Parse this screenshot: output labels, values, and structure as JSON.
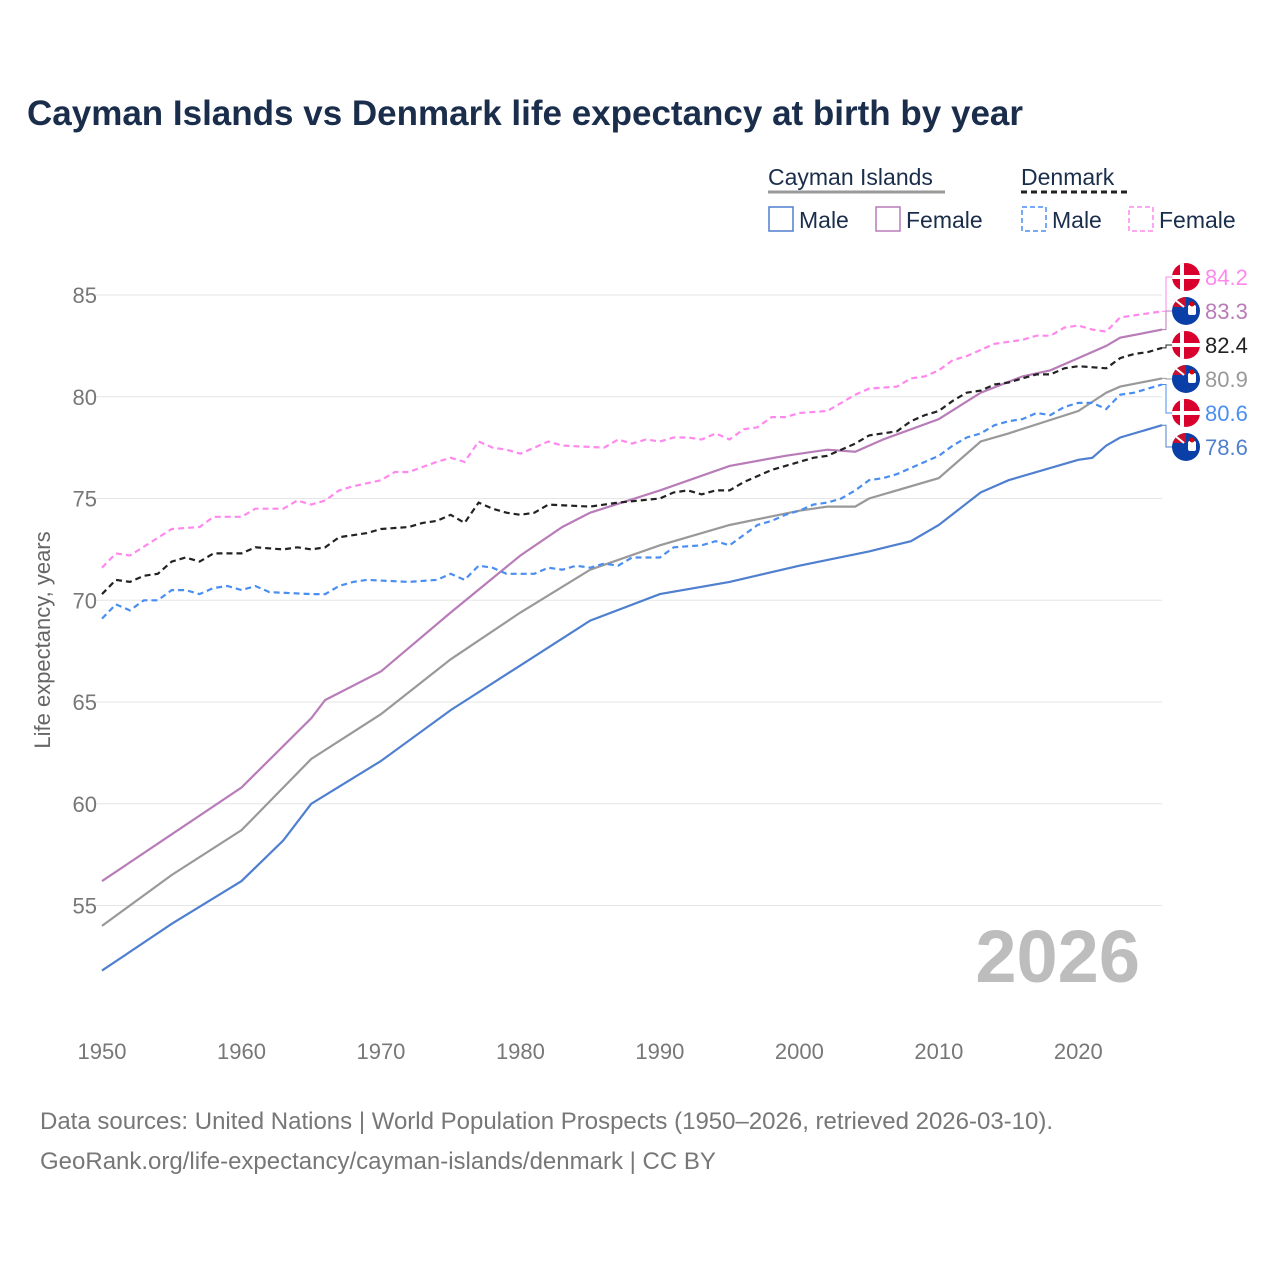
{
  "title": "Cayman Islands vs Denmark life expectancy at birth by year",
  "footer": {
    "line1": "Data sources: United Nations | World Population Prospects (1950–2026, retrieved 2026-03-10).",
    "line2": "GeoRank.org/life-expectancy/cayman-islands/denmark | CC BY"
  },
  "chart_data": {
    "type": "line",
    "title": "Cayman Islands vs Denmark life expectancy at birth by year",
    "xlabel": "",
    "ylabel": "Life expectancy, years",
    "xlim": [
      1950,
      2026
    ],
    "ylim": [
      50,
      86.5
    ],
    "xticks": [
      1950,
      1960,
      1970,
      1980,
      1990,
      2000,
      2010,
      2020
    ],
    "yticks": [
      55,
      60,
      65,
      70,
      75,
      80,
      85
    ],
    "grid": true,
    "watermark": "2026",
    "legend": {
      "position": "top-right",
      "groups": [
        {
          "name": "Cayman Islands",
          "items": [
            "Male",
            "Female"
          ]
        },
        {
          "name": "Denmark",
          "items": [
            "Male",
            "Female"
          ]
        }
      ]
    },
    "series": [
      {
        "name": "Cayman Islands",
        "color": "#999999",
        "dash": false,
        "flag": "cayman",
        "end_label": "80.9",
        "points": [
          [
            1950,
            54.0
          ],
          [
            1955,
            56.5
          ],
          [
            1960,
            58.7
          ],
          [
            1965,
            62.2
          ],
          [
            1970,
            64.4
          ],
          [
            1975,
            67.1
          ],
          [
            1980,
            69.4
          ],
          [
            1985,
            71.5
          ],
          [
            1990,
            72.7
          ],
          [
            1995,
            73.7
          ],
          [
            2000,
            74.4
          ],
          [
            2002,
            74.6
          ],
          [
            2004,
            74.6
          ],
          [
            2005,
            75.0
          ],
          [
            2010,
            76.0
          ],
          [
            2013,
            77.8
          ],
          [
            2015,
            78.2
          ],
          [
            2020,
            79.3
          ],
          [
            2022,
            80.2
          ],
          [
            2023,
            80.5
          ],
          [
            2026,
            80.9
          ]
        ]
      },
      {
        "name": "Cayman Islands Female",
        "color": "#b87cb8",
        "dash": false,
        "flag": "cayman",
        "end_label": "83.3",
        "points": [
          [
            1950,
            56.2
          ],
          [
            1955,
            58.5
          ],
          [
            1960,
            60.8
          ],
          [
            1965,
            64.2
          ],
          [
            1966,
            65.1
          ],
          [
            1970,
            66.5
          ],
          [
            1975,
            69.4
          ],
          [
            1980,
            72.2
          ],
          [
            1983,
            73.6
          ],
          [
            1985,
            74.3
          ],
          [
            1990,
            75.4
          ],
          [
            1995,
            76.6
          ],
          [
            1999,
            77.1
          ],
          [
            2002,
            77.4
          ],
          [
            2004,
            77.3
          ],
          [
            2006,
            77.9
          ],
          [
            2010,
            78.9
          ],
          [
            2013,
            80.2
          ],
          [
            2016,
            81.0
          ],
          [
            2018,
            81.3
          ],
          [
            2020,
            81.9
          ],
          [
            2022,
            82.5
          ],
          [
            2023,
            82.9
          ],
          [
            2026,
            83.3
          ]
        ]
      },
      {
        "name": "Cayman Islands Male",
        "color": "#4f7fcf",
        "dash": false,
        "flag": "cayman",
        "end_label": "78.6",
        "points": [
          [
            1950,
            51.8
          ],
          [
            1955,
            54.1
          ],
          [
            1960,
            56.2
          ],
          [
            1963,
            58.2
          ],
          [
            1965,
            60.0
          ],
          [
            1970,
            62.1
          ],
          [
            1975,
            64.6
          ],
          [
            1980,
            66.8
          ],
          [
            1985,
            69.0
          ],
          [
            1990,
            70.3
          ],
          [
            1995,
            70.9
          ],
          [
            2000,
            71.7
          ],
          [
            2005,
            72.4
          ],
          [
            2008,
            72.9
          ],
          [
            2010,
            73.7
          ],
          [
            2013,
            75.3
          ],
          [
            2015,
            75.9
          ],
          [
            2020,
            76.9
          ],
          [
            2021,
            77.0
          ],
          [
            2022,
            77.6
          ],
          [
            2023,
            78.0
          ],
          [
            2026,
            78.6
          ]
        ]
      },
      {
        "name": "Denmark Female",
        "color": "#ff88ee",
        "dash": true,
        "flag": "denmark",
        "end_label": "84.2",
        "points": [
          [
            1950,
            71.6
          ],
          [
            1951,
            72.3
          ],
          [
            1952,
            72.2
          ],
          [
            1955,
            73.5
          ],
          [
            1957,
            73.6
          ],
          [
            1958,
            74.1
          ],
          [
            1960,
            74.1
          ],
          [
            1961,
            74.5
          ],
          [
            1963,
            74.5
          ],
          [
            1964,
            74.9
          ],
          [
            1965,
            74.7
          ],
          [
            1966,
            74.9
          ],
          [
            1967,
            75.4
          ],
          [
            1968,
            75.6
          ],
          [
            1970,
            75.9
          ],
          [
            1971,
            76.3
          ],
          [
            1972,
            76.3
          ],
          [
            1974,
            76.8
          ],
          [
            1975,
            77.0
          ],
          [
            1976,
            76.8
          ],
          [
            1977,
            77.8
          ],
          [
            1978,
            77.5
          ],
          [
            1979,
            77.4
          ],
          [
            1980,
            77.2
          ],
          [
            1981,
            77.5
          ],
          [
            1982,
            77.8
          ],
          [
            1983,
            77.6
          ],
          [
            1986,
            77.5
          ],
          [
            1987,
            77.9
          ],
          [
            1988,
            77.7
          ],
          [
            1989,
            77.9
          ],
          [
            1990,
            77.8
          ],
          [
            1991,
            78.0
          ],
          [
            1992,
            78.0
          ],
          [
            1993,
            77.9
          ],
          [
            1994,
            78.2
          ],
          [
            1995,
            77.9
          ],
          [
            1996,
            78.4
          ],
          [
            1997,
            78.5
          ],
          [
            1998,
            79.0
          ],
          [
            1999,
            79.0
          ],
          [
            2000,
            79.2
          ],
          [
            2002,
            79.3
          ],
          [
            2003,
            79.7
          ],
          [
            2004,
            80.1
          ],
          [
            2005,
            80.4
          ],
          [
            2007,
            80.5
          ],
          [
            2008,
            80.9
          ],
          [
            2009,
            81.0
          ],
          [
            2010,
            81.3
          ],
          [
            2011,
            81.8
          ],
          [
            2012,
            82.0
          ],
          [
            2013,
            82.3
          ],
          [
            2014,
            82.6
          ],
          [
            2016,
            82.8
          ],
          [
            2017,
            83.0
          ],
          [
            2018,
            83.0
          ],
          [
            2019,
            83.4
          ],
          [
            2020,
            83.5
          ],
          [
            2021,
            83.3
          ],
          [
            2022,
            83.2
          ],
          [
            2023,
            83.9
          ],
          [
            2024,
            84.0
          ],
          [
            2026,
            84.2
          ]
        ]
      },
      {
        "name": "Denmark",
        "color": "#222222",
        "dash": true,
        "flag": "denmark",
        "end_label": "82.4",
        "points": [
          [
            1950,
            70.3
          ],
          [
            1951,
            71.0
          ],
          [
            1952,
            70.9
          ],
          [
            1953,
            71.2
          ],
          [
            1954,
            71.3
          ],
          [
            1955,
            71.9
          ],
          [
            1956,
            72.1
          ],
          [
            1957,
            71.9
          ],
          [
            1958,
            72.3
          ],
          [
            1960,
            72.3
          ],
          [
            1961,
            72.6
          ],
          [
            1963,
            72.5
          ],
          [
            1964,
            72.6
          ],
          [
            1965,
            72.5
          ],
          [
            1966,
            72.6
          ],
          [
            1967,
            73.1
          ],
          [
            1969,
            73.3
          ],
          [
            1970,
            73.5
          ],
          [
            1972,
            73.6
          ],
          [
            1973,
            73.8
          ],
          [
            1974,
            73.9
          ],
          [
            1975,
            74.2
          ],
          [
            1976,
            73.8
          ],
          [
            1977,
            74.8
          ],
          [
            1978,
            74.5
          ],
          [
            1979,
            74.3
          ],
          [
            1980,
            74.2
          ],
          [
            1981,
            74.3
          ],
          [
            1982,
            74.7
          ],
          [
            1985,
            74.6
          ],
          [
            1987,
            74.8
          ],
          [
            1990,
            75.0
          ],
          [
            1991,
            75.3
          ],
          [
            1992,
            75.4
          ],
          [
            1993,
            75.2
          ],
          [
            1994,
            75.4
          ],
          [
            1995,
            75.4
          ],
          [
            1996,
            75.8
          ],
          [
            1997,
            76.1
          ],
          [
            1998,
            76.4
          ],
          [
            1999,
            76.6
          ],
          [
            2000,
            76.8
          ],
          [
            2001,
            77.0
          ],
          [
            2002,
            77.1
          ],
          [
            2003,
            77.4
          ],
          [
            2004,
            77.7
          ],
          [
            2005,
            78.1
          ],
          [
            2007,
            78.3
          ],
          [
            2008,
            78.8
          ],
          [
            2009,
            79.1
          ],
          [
            2010,
            79.3
          ],
          [
            2011,
            79.8
          ],
          [
            2012,
            80.2
          ],
          [
            2013,
            80.3
          ],
          [
            2014,
            80.6
          ],
          [
            2015,
            80.7
          ],
          [
            2016,
            80.9
          ],
          [
            2017,
            81.1
          ],
          [
            2018,
            81.1
          ],
          [
            2019,
            81.4
          ],
          [
            2020,
            81.5
          ],
          [
            2022,
            81.4
          ],
          [
            2023,
            81.9
          ],
          [
            2024,
            82.1
          ],
          [
            2025,
            82.2
          ],
          [
            2026,
            82.4
          ]
        ]
      },
      {
        "name": "Denmark Male",
        "color": "#4a8ef0",
        "dash": true,
        "flag": "denmark",
        "end_label": "80.6",
        "points": [
          [
            1950,
            69.1
          ],
          [
            1951,
            69.8
          ],
          [
            1952,
            69.5
          ],
          [
            1953,
            70.0
          ],
          [
            1954,
            70.0
          ],
          [
            1955,
            70.5
          ],
          [
            1956,
            70.5
          ],
          [
            1957,
            70.3
          ],
          [
            1958,
            70.6
          ],
          [
            1959,
            70.7
          ],
          [
            1960,
            70.5
          ],
          [
            1961,
            70.7
          ],
          [
            1962,
            70.4
          ],
          [
            1965,
            70.3
          ],
          [
            1966,
            70.3
          ],
          [
            1967,
            70.7
          ],
          [
            1968,
            70.9
          ],
          [
            1969,
            71.0
          ],
          [
            1972,
            70.9
          ],
          [
            1974,
            71.0
          ],
          [
            1975,
            71.3
          ],
          [
            1976,
            71.0
          ],
          [
            1977,
            71.7
          ],
          [
            1978,
            71.6
          ],
          [
            1979,
            71.3
          ],
          [
            1981,
            71.3
          ],
          [
            1982,
            71.6
          ],
          [
            1983,
            71.5
          ],
          [
            1984,
            71.7
          ],
          [
            1985,
            71.6
          ],
          [
            1986,
            71.8
          ],
          [
            1987,
            71.7
          ],
          [
            1988,
            72.1
          ],
          [
            1990,
            72.1
          ],
          [
            1991,
            72.6
          ],
          [
            1993,
            72.7
          ],
          [
            1994,
            72.9
          ],
          [
            1995,
            72.7
          ],
          [
            1996,
            73.2
          ],
          [
            1997,
            73.7
          ],
          [
            1998,
            73.9
          ],
          [
            1999,
            74.2
          ],
          [
            2000,
            74.4
          ],
          [
            2001,
            74.7
          ],
          [
            2002,
            74.8
          ],
          [
            2003,
            75.0
          ],
          [
            2004,
            75.4
          ],
          [
            2005,
            75.9
          ],
          [
            2006,
            76.0
          ],
          [
            2007,
            76.2
          ],
          [
            2008,
            76.5
          ],
          [
            2009,
            76.8
          ],
          [
            2010,
            77.1
          ],
          [
            2011,
            77.6
          ],
          [
            2012,
            78.0
          ],
          [
            2013,
            78.2
          ],
          [
            2014,
            78.6
          ],
          [
            2015,
            78.8
          ],
          [
            2016,
            78.9
          ],
          [
            2017,
            79.2
          ],
          [
            2018,
            79.1
          ],
          [
            2019,
            79.5
          ],
          [
            2020,
            79.7
          ],
          [
            2021,
            79.7
          ],
          [
            2022,
            79.4
          ],
          [
            2023,
            80.1
          ],
          [
            2024,
            80.2
          ],
          [
            2025,
            80.4
          ],
          [
            2026,
            80.6
          ]
        ]
      }
    ]
  }
}
